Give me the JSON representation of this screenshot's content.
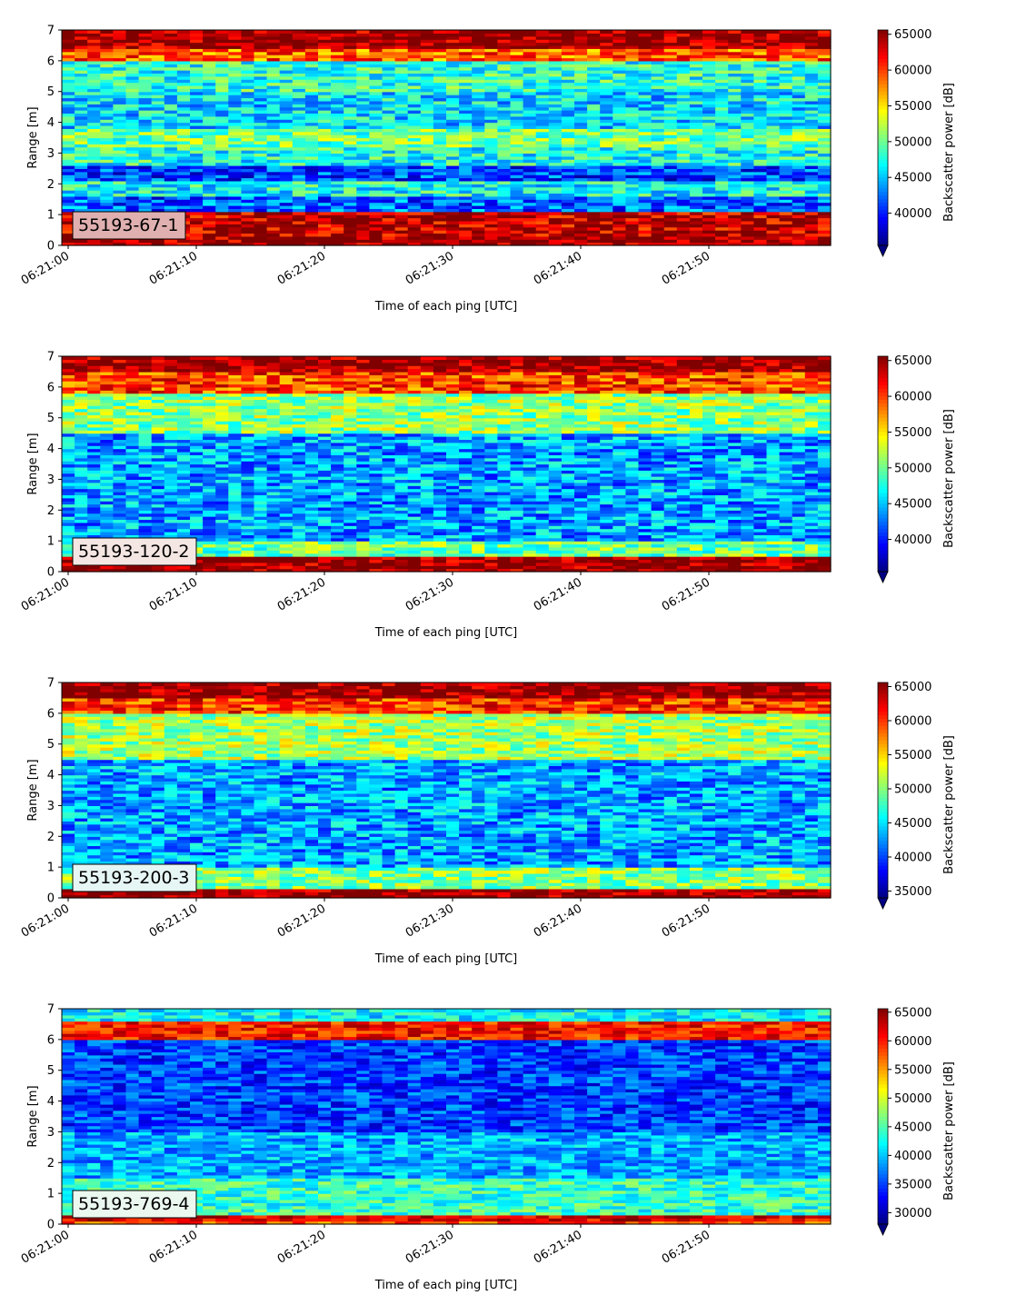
{
  "chart_data": [
    {
      "type": "heatmap",
      "panel_label": "55193-67-1",
      "xlabel": "Time of each ping [UTC]",
      "ylabel": "Range [m]",
      "x_ticks": [
        "06:21:00",
        "06:21:10",
        "06:21:20",
        "06:21:30",
        "06:21:40",
        "06:21:50"
      ],
      "y_ticks": [
        "0",
        "1",
        "2",
        "3",
        "4",
        "5",
        "6",
        "7"
      ],
      "ylim": [
        0,
        7
      ],
      "colorbar_label": "Backscatter power [dB]",
      "colorbar_ticks": [
        "40000",
        "45000",
        "50000",
        "55000",
        "60000",
        "65000"
      ],
      "colorbar_range": [
        35500,
        65600
      ],
      "colormap": "jet",
      "label_box_color": "#e0b0b0",
      "range_profile": [
        {
          "range": [
            0,
            0.3
          ],
          "power": 65000
        },
        {
          "range": [
            0.3,
            1.1
          ],
          "power": 63500
        },
        {
          "range": [
            1.1,
            1.6
          ],
          "power": 42000
        },
        {
          "range": [
            1.6,
            2.1
          ],
          "power": 47000
        },
        {
          "range": [
            2.1,
            2.6
          ],
          "power": 41000
        },
        {
          "range": [
            2.6,
            3.2
          ],
          "power": 47500
        },
        {
          "range": [
            3.2,
            3.8
          ],
          "power": 50000
        },
        {
          "range": [
            3.8,
            5.0
          ],
          "power": 46000
        },
        {
          "range": [
            5.0,
            6.0
          ],
          "power": 48000
        },
        {
          "range": [
            6.0,
            6.4
          ],
          "power": 59000
        },
        {
          "range": [
            6.4,
            7.0
          ],
          "power": 65000
        }
      ]
    },
    {
      "type": "heatmap",
      "panel_label": "55193-120-2",
      "xlabel": "Time of each ping [UTC]",
      "ylabel": "Range [m]",
      "x_ticks": [
        "06:21:00",
        "06:21:10",
        "06:21:20",
        "06:21:30",
        "06:21:40",
        "06:21:50"
      ],
      "y_ticks": [
        "0",
        "1",
        "2",
        "3",
        "4",
        "5",
        "6",
        "7"
      ],
      "ylim": [
        0,
        7
      ],
      "colorbar_label": "Backscatter power [dB]",
      "colorbar_ticks": [
        "40000",
        "45000",
        "50000",
        "55000",
        "60000",
        "65000"
      ],
      "colorbar_range": [
        35500,
        65600
      ],
      "colormap": "jet",
      "label_box_color": "#f4e6e2",
      "range_profile": [
        {
          "range": [
            0,
            0.5
          ],
          "power": 65000
        },
        {
          "range": [
            0.5,
            1.0
          ],
          "power": 50000
        },
        {
          "range": [
            1.0,
            3.0
          ],
          "power": 44000
        },
        {
          "range": [
            3.0,
            4.5
          ],
          "power": 44000
        },
        {
          "range": [
            4.5,
            5.8
          ],
          "power": 51000
        },
        {
          "range": [
            5.8,
            6.5
          ],
          "power": 60000
        },
        {
          "range": [
            6.5,
            7.0
          ],
          "power": 65000
        }
      ]
    },
    {
      "type": "heatmap",
      "panel_label": "55193-200-3",
      "xlabel": "Time of each ping [UTC]",
      "ylabel": "Range [m]",
      "x_ticks": [
        "06:21:00",
        "06:21:10",
        "06:21:20",
        "06:21:30",
        "06:21:40",
        "06:21:50"
      ],
      "y_ticks": [
        "0",
        "1",
        "2",
        "3",
        "4",
        "5",
        "6",
        "7"
      ],
      "ylim": [
        0,
        7
      ],
      "colorbar_label": "Backscatter power [dB]",
      "colorbar_ticks": [
        "35000",
        "40000",
        "45000",
        "50000",
        "55000",
        "60000",
        "65000"
      ],
      "colorbar_range": [
        34000,
        65600
      ],
      "colormap": "jet",
      "label_box_color": "#e6f6f4",
      "range_profile": [
        {
          "range": [
            0,
            0.3
          ],
          "power": 65000
        },
        {
          "range": [
            0.3,
            1.0
          ],
          "power": 50000
        },
        {
          "range": [
            1.0,
            4.5
          ],
          "power": 43000
        },
        {
          "range": [
            4.5,
            6.0
          ],
          "power": 51000
        },
        {
          "range": [
            6.0,
            6.5
          ],
          "power": 60000
        },
        {
          "range": [
            6.5,
            7.0
          ],
          "power": 65000
        }
      ]
    },
    {
      "type": "heatmap",
      "panel_label": "55193-769-4",
      "xlabel": "Time of each ping [UTC]",
      "ylabel": "Range [m]",
      "x_ticks": [
        "06:21:00",
        "06:21:10",
        "06:21:20",
        "06:21:30",
        "06:21:40",
        "06:21:50"
      ],
      "y_ticks": [
        "0",
        "1",
        "2",
        "3",
        "4",
        "5",
        "6",
        "7"
      ],
      "ylim": [
        0,
        7
      ],
      "colorbar_label": "Backscatter power [dB]",
      "colorbar_ticks": [
        "30000",
        "35000",
        "40000",
        "45000",
        "50000",
        "55000",
        "60000",
        "65000"
      ],
      "colorbar_range": [
        28000,
        65600
      ],
      "colormap": "jet",
      "label_box_color": "#ebf8f0",
      "range_profile": [
        {
          "range": [
            0,
            0.1
          ],
          "power": 58000
        },
        {
          "range": [
            0.1,
            0.3
          ],
          "power": 62000
        },
        {
          "range": [
            0.3,
            1.5
          ],
          "power": 44000
        },
        {
          "range": [
            1.5,
            3.0
          ],
          "power": 39000
        },
        {
          "range": [
            3.0,
            6.0
          ],
          "power": 35000
        },
        {
          "range": [
            6.0,
            6.6
          ],
          "power": 60000
        },
        {
          "range": [
            6.6,
            7.0
          ],
          "power": 42000
        }
      ]
    }
  ]
}
